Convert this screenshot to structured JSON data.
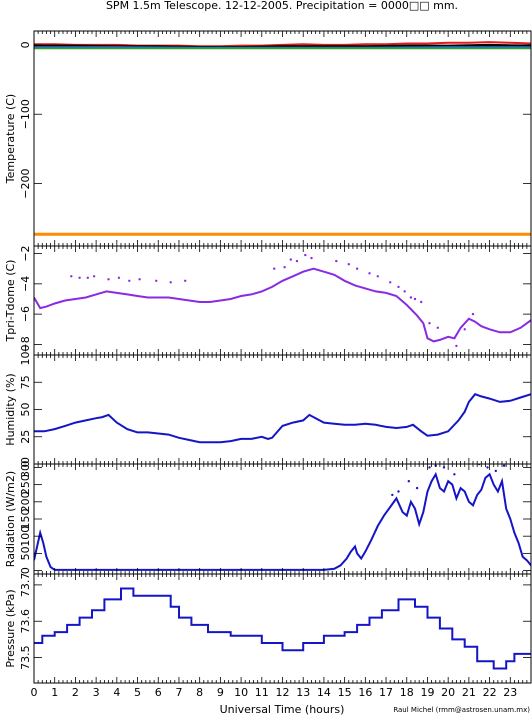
{
  "chart_data": {
    "type": "line",
    "title": "SPM 1.5m Telescope. 12-12-2005. Precipitation = 0000□□ mm.",
    "xlabel": "Universal Time (hours)",
    "credit": "Raul Michel (rmm@astrosen.unam.mx)",
    "x_ticks": [
      "0",
      "1",
      "2",
      "3",
      "4",
      "5",
      "6",
      "7",
      "8",
      "9",
      "10",
      "11",
      "12",
      "13",
      "14",
      "15",
      "16",
      "17",
      "18",
      "19",
      "20",
      "21",
      "22",
      "23"
    ],
    "xlim": [
      0,
      24
    ],
    "panels": [
      {
        "id": "temperature",
        "ylabel": "Temperature (C)",
        "ylim": [
          -290,
          20
        ],
        "yticks": [
          {
            "v": 0,
            "t": "0"
          },
          {
            "v": -100,
            "t": "−100"
          },
          {
            "v": -200,
            "t": "−200"
          }
        ],
        "series": [
          {
            "color": "#e41a1c",
            "style": "line",
            "x": [
              0,
              1,
              2,
              3,
              4,
              5,
              6,
              7,
              8,
              9,
              10,
              11,
              12,
              13,
              14,
              15,
              16,
              17,
              18,
              19,
              20,
              21,
              22,
              23,
              24
            ],
            "y": [
              1,
              1,
              0,
              0,
              0,
              -1,
              -1,
              -1,
              -2,
              -2,
              -1,
              -1,
              0,
              1,
              0,
              0,
              1,
              1,
              2,
              2,
              3,
              3,
              4,
              3,
              2
            ]
          },
          {
            "color": "#000000",
            "style": "line",
            "x": [
              0,
              2,
              4,
              6,
              8,
              10,
              12,
              14,
              16,
              18,
              20,
              22,
              24
            ],
            "y": [
              -1,
              -1,
              -2,
              -2,
              -3,
              -3,
              -2,
              -2,
              -2,
              -1,
              -1,
              0,
              -1
            ]
          },
          {
            "color": "#1e4fd8",
            "style": "line",
            "x": [
              0,
              4,
              8,
              12,
              16,
              20,
              24
            ],
            "y": [
              -3,
              -3,
              -4,
              -4,
              -4,
              -3,
              -3
            ]
          },
          {
            "color": "#2ca02c",
            "style": "line",
            "x": [
              0,
              24
            ],
            "y": [
              -5,
              -5
            ]
          },
          {
            "color": "#ff8c00",
            "style": "line",
            "x": [
              0,
              24
            ],
            "y": [
              -273,
              -273
            ]
          }
        ]
      },
      {
        "id": "dtemp",
        "ylabel": "Tpri-Tdome (C)",
        "ylim": [
          -8.7,
          -1.5
        ],
        "yticks": [
          {
            "v": -2,
            "t": "−2"
          },
          {
            "v": -4,
            "t": "−4"
          },
          {
            "v": -6,
            "t": "−6"
          },
          {
            "v": -8,
            "t": "−8"
          }
        ],
        "series": [
          {
            "color": "#8a2be2",
            "style": "line",
            "x": [
              0,
              0.3,
              0.6,
              1,
              1.5,
              2,
              2.5,
              3,
              3.5,
              4,
              4.5,
              5,
              5.5,
              6,
              6.5,
              7,
              7.5,
              8,
              8.5,
              9,
              9.5,
              10,
              10.5,
              11,
              11.5,
              12,
              12.5,
              13,
              13.5,
              14,
              14.5,
              15,
              15.5,
              16,
              16.5,
              17,
              17.5,
              18,
              18.5,
              18.8,
              19,
              19.3,
              19.6,
              20,
              20.3,
              20.6,
              21,
              21.3,
              21.6,
              22,
              22.5,
              23,
              23.5,
              24
            ],
            "y": [
              -4.9,
              -5.6,
              -5.5,
              -5.3,
              -5.1,
              -5.0,
              -4.9,
              -4.7,
              -4.5,
              -4.6,
              -4.7,
              -4.8,
              -4.9,
              -4.9,
              -4.9,
              -5.0,
              -5.1,
              -5.2,
              -5.2,
              -5.1,
              -5.0,
              -4.8,
              -4.7,
              -4.5,
              -4.2,
              -3.8,
              -3.5,
              -3.2,
              -3.0,
              -3.2,
              -3.4,
              -3.8,
              -4.1,
              -4.3,
              -4.5,
              -4.6,
              -4.8,
              -5.4,
              -6.1,
              -6.6,
              -7.6,
              -7.8,
              -7.7,
              -7.5,
              -7.6,
              -6.9,
              -6.3,
              -6.5,
              -6.8,
              -7.0,
              -7.2,
              -7.2,
              -6.9,
              -6.4
            ]
          },
          {
            "color": "#8a2be2",
            "style": "dots",
            "x": [
              1.8,
              2.2,
              2.6,
              2.9,
              3.6,
              4.1,
              4.6,
              5.1,
              5.9,
              6.6,
              7.3,
              11.6,
              12.1,
              12.4,
              12.7,
              13.1,
              13.4,
              14.6,
              15.2,
              15.6,
              16.2,
              16.6,
              17.2,
              17.6,
              17.9,
              18.2,
              18.4,
              18.7,
              19.1,
              19.5,
              20.4,
              20.8,
              21.2
            ],
            "y": [
              -3.5,
              -3.6,
              -3.6,
              -3.5,
              -3.7,
              -3.6,
              -3.8,
              -3.7,
              -3.8,
              -3.9,
              -3.8,
              -3.0,
              -2.9,
              -2.4,
              -2.5,
              -2.1,
              -2.3,
              -2.5,
              -2.7,
              -3.0,
              -3.3,
              -3.5,
              -3.9,
              -4.2,
              -4.5,
              -4.9,
              -5.0,
              -5.2,
              -6.6,
              -6.9,
              -8.1,
              -7.0,
              -6.0
            ]
          }
        ]
      },
      {
        "id": "humidity",
        "ylabel": "Humidity (%)",
        "ylim": [
          0,
          100
        ],
        "yticks": [
          {
            "v": 0,
            "t": "0"
          },
          {
            "v": 25,
            "t": "25"
          },
          {
            "v": 50,
            "t": "50"
          },
          {
            "v": 75,
            "t": "75"
          },
          {
            "v": 100,
            "t": "100"
          }
        ],
        "series": [
          {
            "color": "#1515c8",
            "style": "line",
            "x": [
              0,
              0.5,
              1,
              1.5,
              2,
              2.5,
              3,
              3.3,
              3.6,
              4,
              4.5,
              5,
              5.5,
              6,
              6.5,
              7,
              7.5,
              8,
              8.5,
              9,
              9.5,
              10,
              10.5,
              11,
              11.3,
              11.5,
              12,
              12.5,
              13,
              13.3,
              13.6,
              14,
              14.5,
              15,
              15.5,
              16,
              16.5,
              17,
              17.5,
              18,
              18.3,
              18.7,
              19,
              19.5,
              20,
              20.5,
              20.8,
              21,
              21.3,
              21.6,
              22,
              22.5,
              23,
              23.5,
              24
            ],
            "y": [
              30,
              30,
              32,
              35,
              38,
              40,
              42,
              43,
              45,
              38,
              32,
              29,
              29,
              28,
              27,
              24,
              22,
              20,
              20,
              20,
              21,
              23,
              23,
              25,
              23,
              24,
              35,
              38,
              40,
              45,
              42,
              38,
              37,
              36,
              36,
              37,
              36,
              34,
              33,
              34,
              36,
              30,
              26,
              27,
              30,
              40,
              48,
              57,
              64,
              62,
              60,
              57,
              58,
              61,
              64
            ]
          }
        ]
      },
      {
        "id": "radiation",
        "ylabel": "Radiation (W/m2)",
        "ylim": [
          -10,
          310
        ],
        "yticks": [
          {
            "v": 0,
            "t": "0"
          },
          {
            "v": 50,
            "t": "50"
          },
          {
            "v": 100,
            "t": "100"
          },
          {
            "v": 150,
            "t": "150"
          },
          {
            "v": 200,
            "t": "200"
          },
          {
            "v": 250,
            "t": "250"
          },
          {
            "v": 300,
            "t": "300"
          }
        ],
        "series": [
          {
            "color": "#1515c8",
            "style": "line",
            "x": [
              0,
              0.15,
              0.3,
              0.45,
              0.6,
              0.8,
              1,
              2,
              4,
              6,
              8,
              10,
              12,
              14,
              14.5,
              14.8,
              15.1,
              15.3,
              15.5,
              15.6,
              15.8,
              16,
              16.3,
              16.6,
              16.9,
              17.2,
              17.5,
              17.8,
              18,
              18.2,
              18.4,
              18.6,
              18.8,
              19,
              19.2,
              19.4,
              19.6,
              19.8,
              20,
              20.2,
              20.4,
              20.6,
              20.8,
              21,
              21.2,
              21.4,
              21.6,
              21.8,
              22,
              22.2,
              22.4,
              22.6,
              22.8,
              23,
              23.2,
              23.4,
              23.6,
              23.8,
              24
            ],
            "y": [
              30,
              70,
              110,
              80,
              40,
              10,
              2,
              2,
              2,
              2,
              2,
              2,
              2,
              2,
              5,
              15,
              35,
              55,
              70,
              50,
              35,
              55,
              90,
              130,
              160,
              185,
              210,
              170,
              160,
              200,
              180,
              135,
              170,
              230,
              260,
              280,
              240,
              230,
              260,
              250,
              210,
              240,
              230,
              200,
              190,
              220,
              235,
              270,
              280,
              250,
              230,
              260,
              180,
              150,
              110,
              80,
              40,
              30,
              15
            ]
          },
          {
            "color": "#1515c8",
            "style": "dots",
            "x": [
              17.3,
              17.6,
              18.1,
              18.5,
              19.1,
              19.4,
              19.8,
              20.3,
              21.5,
              21.9,
              22.3,
              22.7
            ],
            "y": [
              220,
              230,
              260,
              240,
              300,
              305,
              300,
              280,
              310,
              300,
              290,
              305
            ]
          }
        ]
      },
      {
        "id": "pressure",
        "ylabel": "Pressure (kPa)",
        "ylim": [
          73.43,
          73.73
        ],
        "yticks": [
          {
            "v": 73.5,
            "t": "73.5"
          },
          {
            "v": 73.6,
            "t": "73.6"
          },
          {
            "v": 73.7,
            "t": "73.7"
          }
        ],
        "series": [
          {
            "color": "#1515c8",
            "style": "line",
            "x": [
              0,
              0.4,
              0.4,
              1,
              1,
              1.6,
              1.6,
              2.2,
              2.2,
              2.8,
              2.8,
              3.4,
              3.4,
              4.2,
              4.2,
              4.8,
              4.8,
              6.6,
              6.6,
              7,
              7,
              7.6,
              7.6,
              8.4,
              8.4,
              9.5,
              9.5,
              11,
              11,
              12,
              12,
              13,
              13,
              14,
              14,
              15,
              15,
              15.6,
              15.6,
              16.2,
              16.2,
              16.8,
              16.8,
              17.6,
              17.6,
              18.4,
              18.4,
              19,
              19,
              19.6,
              19.6,
              20.2,
              20.2,
              20.8,
              20.8,
              21.4,
              21.4,
              22.2,
              22.2,
              22.8,
              22.8,
              23.2,
              23.2,
              24
            ],
            "y": [
              73.54,
              73.54,
              73.56,
              73.56,
              73.57,
              73.57,
              73.59,
              73.59,
              73.61,
              73.61,
              73.63,
              73.63,
              73.66,
              73.66,
              73.69,
              73.69,
              73.67,
              73.67,
              73.64,
              73.64,
              73.61,
              73.61,
              73.59,
              73.59,
              73.57,
              73.57,
              73.56,
              73.56,
              73.54,
              73.54,
              73.52,
              73.52,
              73.54,
              73.54,
              73.56,
              73.56,
              73.57,
              73.57,
              73.59,
              73.59,
              73.61,
              73.61,
              73.63,
              73.63,
              73.66,
              73.66,
              73.64,
              73.64,
              73.61,
              73.61,
              73.58,
              73.58,
              73.55,
              73.55,
              73.53,
              73.53,
              73.49,
              73.49,
              73.47,
              73.47,
              73.49,
              73.49,
              73.51,
              73.51
            ]
          }
        ]
      }
    ]
  }
}
